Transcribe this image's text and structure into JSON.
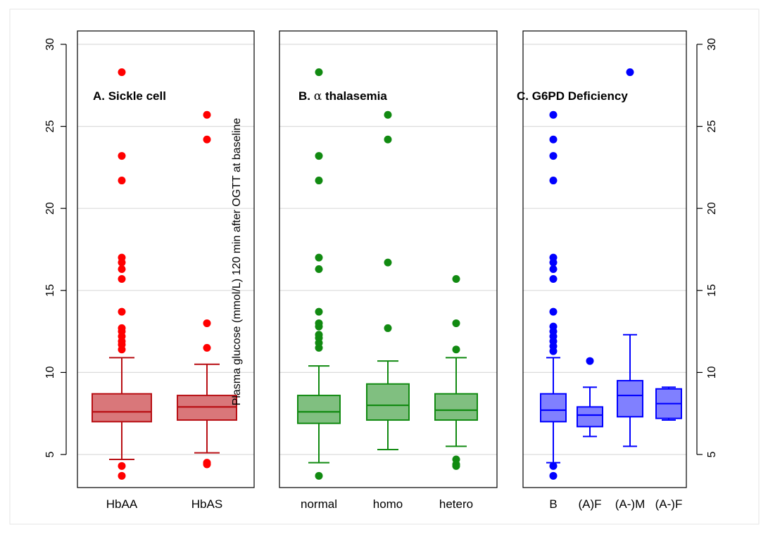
{
  "chart_data": {
    "type": "boxplot",
    "ylabel": "Plasma glucose (mmol/L) 120 min after OGTT at baseline",
    "ylim": [
      3,
      30.5
    ],
    "yticks": [
      5,
      10,
      15,
      20,
      25,
      30
    ],
    "ytick_labels": [
      "5",
      "10",
      "15",
      "20",
      "25",
      "30"
    ],
    "grid": true,
    "panels": [
      {
        "title": "A. Sickle cell",
        "title_prefix": "",
        "title_greek": "",
        "title_suffix": "",
        "color": "#ff0000",
        "box_fill": "#d9777a",
        "box_stroke": "#b80f14",
        "groups": [
          {
            "name": "HbAA",
            "q1": 7.0,
            "median": 7.6,
            "q3": 8.7,
            "whisker_low": 4.7,
            "whisker_high": 10.9,
            "outliers": [
              3.7,
              4.3,
              11.4,
              11.7,
              11.9,
              12.2,
              12.5,
              12.7,
              13.7,
              15.7,
              16.3,
              16.7,
              17.0,
              21.7,
              23.2,
              28.3
            ]
          },
          {
            "name": "HbAS",
            "q1": 7.1,
            "median": 7.9,
            "q3": 8.6,
            "whisker_low": 5.1,
            "whisker_high": 10.5,
            "outliers": [
              4.4,
              4.5,
              11.5,
              13.0,
              24.2,
              25.7
            ]
          }
        ]
      },
      {
        "title": "",
        "title_prefix": "B. ",
        "title_greek": "α",
        "title_suffix": " thalasemia",
        "color": "#118a11",
        "box_fill": "#80bf80",
        "box_stroke": "#118a11",
        "groups": [
          {
            "name": "normal",
            "q1": 6.9,
            "median": 7.6,
            "q3": 8.6,
            "whisker_low": 4.5,
            "whisker_high": 10.4,
            "outliers": [
              3.7,
              11.5,
              11.8,
              12.1,
              12.3,
              12.8,
              13.0,
              13.7,
              16.3,
              17.0,
              21.7,
              23.2,
              28.3
            ]
          },
          {
            "name": "homo",
            "q1": 7.1,
            "median": 8.0,
            "q3": 9.3,
            "whisker_low": 5.3,
            "whisker_high": 10.7,
            "outliers": [
              12.7,
              16.7,
              24.2,
              25.7
            ]
          },
          {
            "name": "hetero",
            "q1": 7.1,
            "median": 7.7,
            "q3": 8.7,
            "whisker_low": 5.5,
            "whisker_high": 10.9,
            "outliers": [
              4.3,
              4.4,
              4.7,
              11.4,
              13.0,
              15.7
            ]
          }
        ]
      },
      {
        "title": "C. G6PD Deficiency",
        "title_prefix": "",
        "title_greek": "",
        "title_suffix": "",
        "color": "#0000ff",
        "box_fill": "#8080ff",
        "box_stroke": "#0000ff",
        "groups": [
          {
            "name": "B",
            "q1": 7.0,
            "median": 7.7,
            "q3": 8.7,
            "whisker_low": 4.5,
            "whisker_high": 10.9,
            "outliers": [
              3.7,
              4.3,
              11.3,
              11.6,
              11.9,
              12.2,
              12.5,
              12.8,
              13.7,
              15.7,
              16.3,
              16.7,
              17.0,
              21.7,
              23.2,
              24.2,
              25.7
            ]
          },
          {
            "name": "(A)F",
            "q1": 6.7,
            "median": 7.4,
            "q3": 7.9,
            "whisker_low": 6.1,
            "whisker_high": 9.1,
            "outliers": [
              10.7
            ]
          },
          {
            "name": "(A-)M",
            "q1": 7.3,
            "median": 8.6,
            "q3": 9.5,
            "whisker_low": 5.5,
            "whisker_high": 12.3,
            "outliers": [
              28.3
            ]
          },
          {
            "name": "(A-)F",
            "q1": 7.2,
            "median": 8.1,
            "q3": 9.0,
            "whisker_low": 7.1,
            "whisker_high": 9.1,
            "outliers": []
          }
        ]
      }
    ]
  }
}
